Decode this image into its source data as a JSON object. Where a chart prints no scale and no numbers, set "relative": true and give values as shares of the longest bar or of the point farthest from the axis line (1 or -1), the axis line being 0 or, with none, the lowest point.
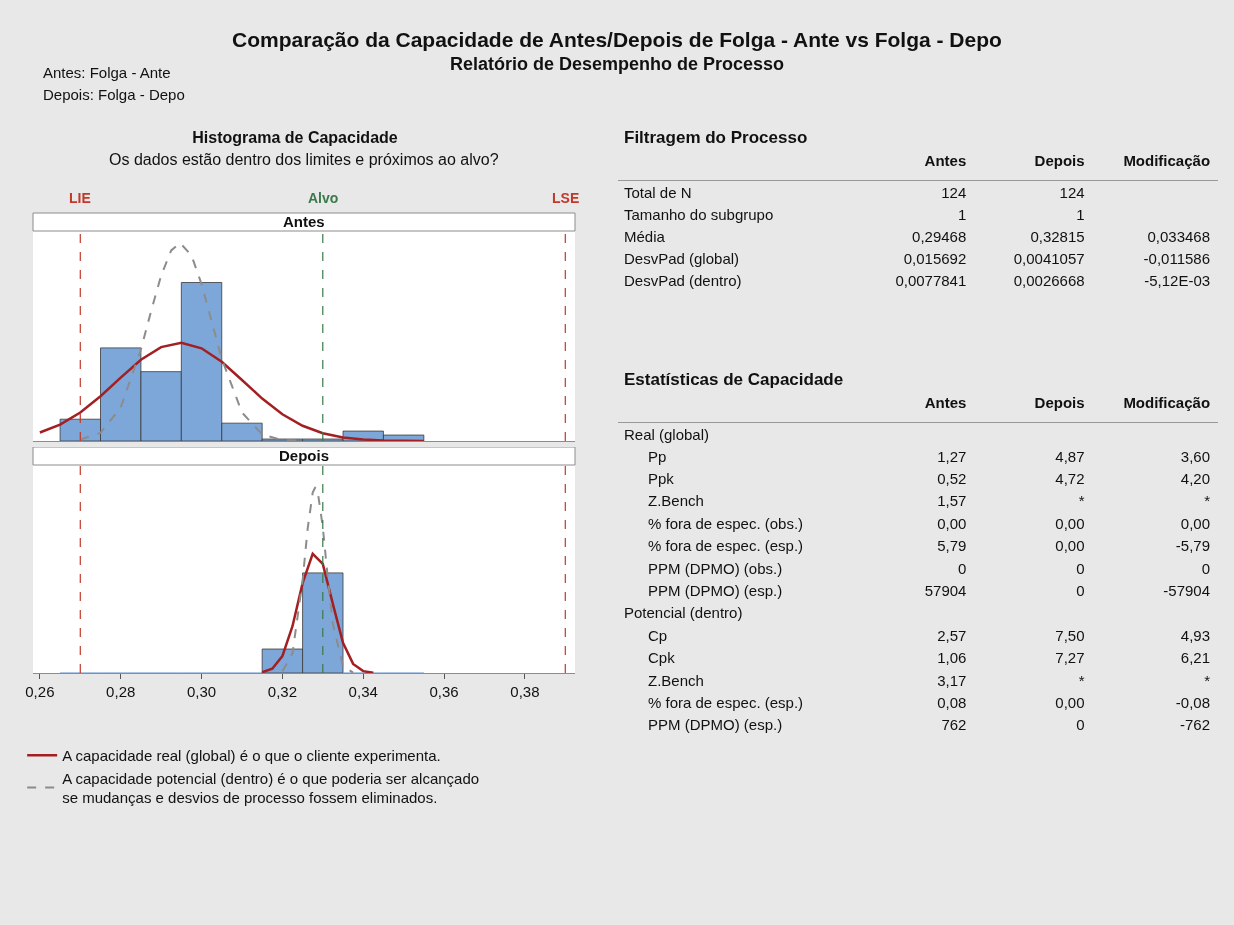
{
  "chart_data": [
    {
      "type": "other",
      "title": "Comparação da Capacidade de Antes/Depois de Folga - Ante vs Folga - Depo",
      "subtitle": "Relatório de Desempenho de Processo",
      "annotations": [
        "Antes: Folga - Ante",
        "Depois: Folga - Depo"
      ]
    },
    {
      "type": "histogram",
      "title": "Histograma de Capacidade",
      "subtitle": "Os dados estão dentro dos limites e próximos ao alvo?",
      "annotations": [
        "Antes"
      ],
      "relative": true,
      "tick_labels": false,
      "bins": [
        0.265,
        0.275,
        0.285,
        0.295,
        0.305,
        0.315,
        0.325,
        0.335,
        0.345,
        0.355
      ],
      "xlim": [
        0.2583,
        0.3924
      ],
      "ref_lines": [
        {
          "axis": "x",
          "value": 0.27,
          "label": "LIE",
          "color": "#c0392b",
          "line_style": "dashed"
        },
        {
          "axis": "x",
          "value": 0.33,
          "label": "Alvo",
          "color": "#3a7a4a",
          "line_style": "dashed"
        },
        {
          "axis": "x",
          "value": 0.39,
          "label": "LSE",
          "color": "#c0392b",
          "line_style": "dashed"
        }
      ],
      "series": [
        {
          "type": "histogram",
          "color": "#7da7d9",
          "values": [
            0.11,
            0.47,
            0.35,
            0.8,
            0.09,
            0.01,
            0.01,
            0.05,
            0.03
          ]
        },
        {
          "type": "line",
          "color": "#a31f22",
          "line_style": "solid",
          "x": [
            0.26,
            0.265,
            0.27,
            0.275,
            0.28,
            0.285,
            0.29,
            0.295,
            0.3,
            0.305,
            0.31,
            0.315,
            0.32,
            0.325,
            0.33,
            0.335,
            0.34,
            0.345,
            0.35,
            0.355
          ],
          "values": [
            0.043,
            0.083,
            0.144,
            0.226,
            0.32,
            0.41,
            0.474,
            0.496,
            0.468,
            0.4,
            0.308,
            0.214,
            0.135,
            0.077,
            0.039,
            0.018,
            0.008,
            0.003,
            0.001,
            0.0003
          ]
        },
        {
          "type": "line",
          "color": "#8c8c8c",
          "line_style": "dashed",
          "x": [
            0.27,
            0.275,
            0.28,
            0.285,
            0.2875,
            0.29,
            0.2925,
            0.29468,
            0.2975,
            0.3,
            0.3025,
            0.305,
            0.31,
            0.315,
            0.32,
            0.325
          ],
          "values": [
            0.007,
            0.041,
            0.169,
            0.462,
            0.654,
            0.835,
            0.962,
            1,
            0.937,
            0.792,
            0.604,
            0.415,
            0.144,
            0.033,
            0.005,
            0.0005
          ]
        }
      ]
    },
    {
      "type": "histogram",
      "annotations": [
        "Depois"
      ],
      "relative": true,
      "tick_labels": "x",
      "legend": "bottom",
      "bins": [
        0.265,
        0.275,
        0.285,
        0.295,
        0.305,
        0.315,
        0.325,
        0.335,
        0.345,
        0.355
      ],
      "xlim": [
        0.2583,
        0.3924
      ],
      "xticks": [
        {
          "value": 0.26,
          "label": "0,26"
        },
        {
          "value": 0.28,
          "label": "0,28"
        },
        {
          "value": 0.3,
          "label": "0,30"
        },
        {
          "value": 0.32,
          "label": "0,32"
        },
        {
          "value": 0.34,
          "label": "0,34"
        },
        {
          "value": 0.36,
          "label": "0,36"
        },
        {
          "value": 0.38,
          "label": "0,38"
        }
      ],
      "ref_lines": [
        {
          "axis": "x",
          "value": 0.27,
          "label": null,
          "color": "#c0392b",
          "line_style": "dashed"
        },
        {
          "axis": "x",
          "value": 0.33,
          "label": null,
          "color": "#3a7a4a",
          "line_style": "dashed"
        },
        {
          "axis": "x",
          "value": 0.39,
          "label": null,
          "color": "#c0392b",
          "line_style": "dashed"
        }
      ],
      "series": [
        {
          "type": "histogram",
          "color": "#7da7d9",
          "values": [
            0,
            0,
            0,
            0,
            0,
            0.129,
            0.539,
            0,
            0
          ]
        },
        {
          "type": "line",
          "name": "A capacidade real (global) é o que o cliente experimenta.",
          "color": "#a31f22",
          "line_style": "solid",
          "x": [
            0.315,
            0.3175,
            0.32,
            0.3225,
            0.325,
            0.3275,
            0.33,
            0.3325,
            0.335,
            0.3375,
            0.34,
            0.3425
          ],
          "values": [
            0.004,
            0.023,
            0.091,
            0.252,
            0.484,
            0.642,
            0.587,
            0.371,
            0.162,
            0.049,
            0.01,
            0.001
          ]
        },
        {
          "type": "line",
          "name": "A capacidade potencial (dentro) é o que poderia ser alcançado\nse mudanças e desvios de processo fossem eliminados.",
          "color": "#8c8c8c",
          "line_style": "dashed",
          "x": [
            0.32,
            0.3225,
            0.325,
            0.32625,
            0.3275,
            0.32815,
            0.32875,
            0.33,
            0.33125,
            0.3325,
            0.335,
            0.3375
          ],
          "values": [
            0.009,
            0.106,
            0.498,
            0.776,
            0.971,
            1,
            0.975,
            0.786,
            0.509,
            0.264,
            0.037,
            0.002
          ]
        }
      ]
    },
    {
      "type": "other",
      "title": "Filtragem do Processo",
      "categories": [
        "Total de N",
        "Tamanho do subgrupo",
        "Média",
        "DesvPad (global)",
        "DesvPad (dentro)"
      ],
      "series": [
        {
          "name": "Antes",
          "values": [
            124,
            1,
            0.29468,
            0.015692,
            0.0077841
          ],
          "value_labels": [
            "124",
            "1",
            "0,29468",
            "0,015692",
            "0,0077841"
          ]
        },
        {
          "name": "Depois",
          "values": [
            124,
            1,
            0.32815,
            0.0041057,
            0.0026668
          ],
          "value_labels": [
            "124",
            "1",
            "0,32815",
            "0,0041057",
            "0,0026668"
          ]
        },
        {
          "name": "Modificação",
          "values": [
            null,
            null,
            0.033468,
            -0.011586,
            null
          ],
          "value_labels": [
            null,
            null,
            "0,033468",
            "-0,011586",
            "-5,12E-03"
          ]
        }
      ]
    },
    {
      "type": "other",
      "title": "Estatísticas de Capacidade",
      "categories": [
        "Real (global)",
        "Pp",
        "Ppk",
        "Z.Bench",
        "% fora de espec. (obs.)",
        "% fora de espec. (esp.)",
        "PPM (DPMO) (obs.)",
        "PPM (DPMO) (esp.)",
        "Potencial (dentro)",
        "Cp",
        "Cpk",
        "Z.Bench",
        "% fora de espec. (esp.)",
        "PPM (DPMO) (esp.)"
      ],
      "series": [
        {
          "name": "Antes",
          "values": [
            null,
            1.27,
            0.52,
            1.57,
            0,
            5.79,
            0,
            57904,
            null,
            2.57,
            1.06,
            3.17,
            0.08,
            762
          ],
          "value_labels": [
            null,
            "1,27",
            "0,52",
            "1,57",
            "0,00",
            "5,79",
            "0",
            "57904",
            null,
            "2,57",
            "1,06",
            "3,17",
            "0,08",
            "762"
          ]
        },
        {
          "name": "Depois",
          "values": [
            null,
            4.87,
            4.72,
            null,
            0,
            0,
            0,
            0,
            null,
            7.5,
            7.27,
            null,
            0,
            0
          ],
          "value_labels": [
            null,
            "4,87",
            "4,72",
            "*",
            "0,00",
            "0,00",
            "0",
            "0",
            null,
            "7,50",
            "7,27",
            "*",
            "0,00",
            "0"
          ]
        },
        {
          "name": "Modificação",
          "values": [
            null,
            3.6,
            4.2,
            null,
            0,
            -5.79,
            0,
            -57904,
            null,
            4.93,
            6.21,
            null,
            -0.08,
            -762
          ],
          "value_labels": [
            null,
            "3,60",
            "4,20",
            "*",
            "0,00",
            "-5,79",
            "0",
            "-57904",
            null,
            "4,93",
            "6,21",
            "*",
            "-0,08",
            "-762"
          ]
        }
      ]
    }
  ]
}
